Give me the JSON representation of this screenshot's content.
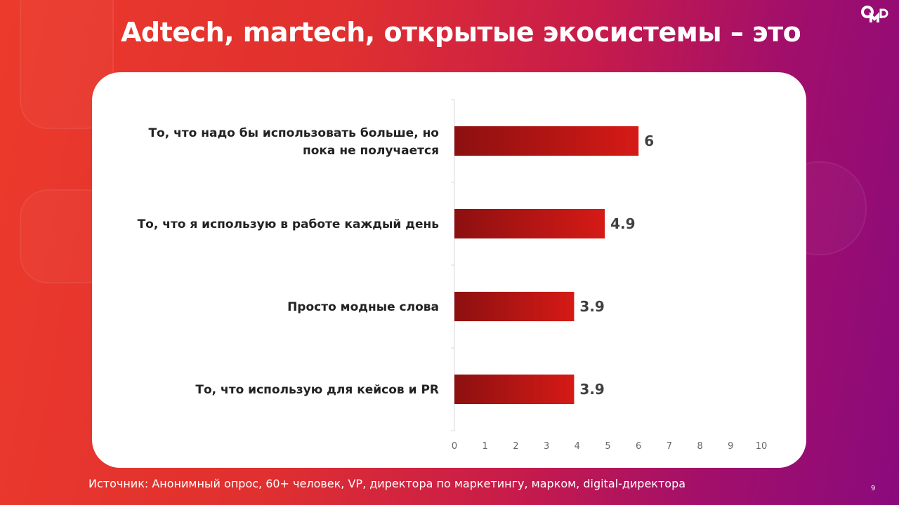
{
  "title": "Adtech, martech, открытые экосистемы  – это",
  "logo_text": "OMD",
  "footer": "Источник: Анонимный опрос, 60+ человек, VP, директора по маркетингу, марком, digital-директора",
  "page_number": "9",
  "colors": {
    "bar_start": "#8c1010",
    "bar_end": "#d61a16"
  },
  "chart_data": {
    "type": "bar",
    "orientation": "horizontal",
    "categories": [
      [
        "То, что надо бы использовать больше, но",
        "пока не получается"
      ],
      [
        "То, что я использую в работе каждый день"
      ],
      [
        "Просто модные слова"
      ],
      [
        "То, что использую для кейсов и PR"
      ]
    ],
    "values": [
      6,
      4.9,
      3.9,
      3.9
    ],
    "value_labels": [
      "6",
      "4.9",
      "3.9",
      "3.9"
    ],
    "xlim": [
      0,
      10
    ],
    "xticks": [
      "0",
      "1",
      "2",
      "3",
      "4",
      "5",
      "6",
      "7",
      "8",
      "9",
      "10"
    ],
    "grid": false
  }
}
